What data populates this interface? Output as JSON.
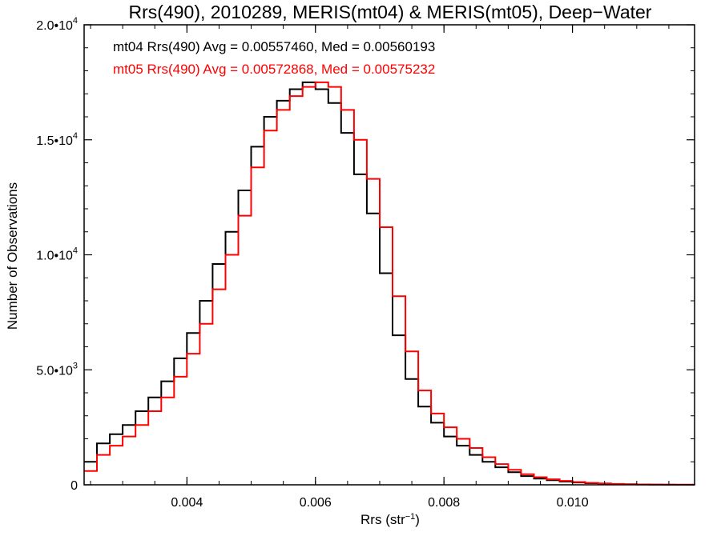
{
  "chart_data": {
    "type": "line",
    "step": true,
    "title": "Rrs(490), 2010289, MERIS(mt04) & MERIS(mt05), Deep−Water",
    "xlabel": "Rrs (str",
    "xlabel_superscript": "−1",
    "xlabel_suffix": ")",
    "ylabel": "Number of Observations",
    "xlim": [
      0.0024,
      0.0119
    ],
    "ylim": [
      0,
      20000
    ],
    "x_ticks": [
      {
        "value": 0.004,
        "label": "0.004"
      },
      {
        "value": 0.006,
        "label": "0.006"
      },
      {
        "value": 0.008,
        "label": "0.008"
      },
      {
        "value": 0.01,
        "label": "0.010"
      }
    ],
    "y_ticks": [
      {
        "value": 0,
        "mantissa": "0",
        "exponent": ""
      },
      {
        "value": 5000,
        "mantissa": "5.0•10",
        "exponent": "3"
      },
      {
        "value": 10000,
        "mantissa": "1.0•10",
        "exponent": "4"
      },
      {
        "value": 15000,
        "mantissa": "1.5•10",
        "exponent": "4"
      },
      {
        "value": 20000,
        "mantissa": "2.0•10",
        "exponent": "4"
      }
    ],
    "grid": false,
    "legend_position": "top-left",
    "series": [
      {
        "name": "mt04",
        "color": "#000000",
        "annotation": "mt04 Rrs(490) Avg = 0.00557460, Med = 0.00560193",
        "x": [
          0.0024,
          0.0026,
          0.0028,
          0.003,
          0.0032,
          0.0034,
          0.0036,
          0.0038,
          0.004,
          0.0042,
          0.0044,
          0.0046,
          0.0048,
          0.005,
          0.0052,
          0.0054,
          0.0056,
          0.0058,
          0.006,
          0.0062,
          0.0064,
          0.0066,
          0.0068,
          0.007,
          0.0072,
          0.0074,
          0.0076,
          0.0078,
          0.008,
          0.0082,
          0.0084,
          0.0086,
          0.0088,
          0.009,
          0.0092,
          0.0094,
          0.0096,
          0.0098,
          0.01,
          0.0102,
          0.0104,
          0.0106,
          0.0108,
          0.011,
          0.0112,
          0.0114,
          0.0116,
          0.0118,
          0.0119
        ],
        "y": [
          1000,
          1800,
          2200,
          2600,
          3200,
          3800,
          4500,
          5500,
          6600,
          8000,
          9600,
          11000,
          12800,
          14700,
          16000,
          16700,
          17200,
          17500,
          17200,
          16600,
          15300,
          13500,
          11800,
          9200,
          6500,
          4600,
          3400,
          2700,
          2100,
          1700,
          1300,
          1000,
          760,
          550,
          380,
          270,
          200,
          140,
          100,
          70,
          50,
          30,
          20,
          15,
          10,
          5,
          3,
          2,
          1
        ]
      },
      {
        "name": "mt05",
        "color": "#ff0000",
        "annotation": "mt05 Rrs(490) Avg = 0.00572868, Med = 0.00575232",
        "x": [
          0.0024,
          0.0026,
          0.0028,
          0.003,
          0.0032,
          0.0034,
          0.0036,
          0.0038,
          0.004,
          0.0042,
          0.0044,
          0.0046,
          0.0048,
          0.005,
          0.0052,
          0.0054,
          0.0056,
          0.0058,
          0.006,
          0.0062,
          0.0064,
          0.0066,
          0.0068,
          0.007,
          0.0072,
          0.0074,
          0.0076,
          0.0078,
          0.008,
          0.0082,
          0.0084,
          0.0086,
          0.0088,
          0.009,
          0.0092,
          0.0094,
          0.0096,
          0.0098,
          0.01,
          0.0102,
          0.0104,
          0.0106,
          0.0108,
          0.011,
          0.0112,
          0.0114,
          0.0116,
          0.0118,
          0.0119
        ],
        "y": [
          600,
          1300,
          1700,
          2100,
          2600,
          3200,
          3800,
          4700,
          5700,
          7000,
          8500,
          10000,
          11700,
          13800,
          15400,
          16300,
          16900,
          17300,
          17500,
          17300,
          16300,
          15000,
          13300,
          11200,
          8200,
          5800,
          4100,
          3100,
          2500,
          2000,
          1600,
          1200,
          900,
          650,
          460,
          330,
          240,
          170,
          120,
          85,
          60,
          40,
          27,
          18,
          12,
          7,
          4,
          2,
          1
        ]
      }
    ]
  }
}
